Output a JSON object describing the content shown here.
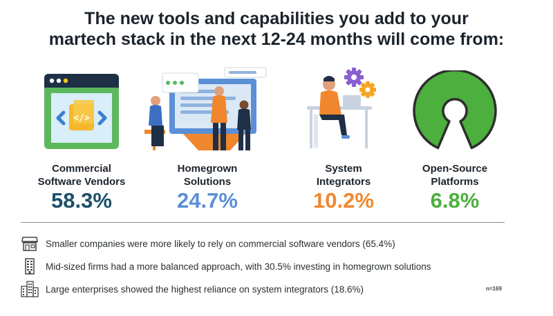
{
  "title": {
    "line1": "The new tools and capabilities you add to your",
    "line2": "martech stack in the next 12-24 months will come from:"
  },
  "chart_data": {
    "type": "bar",
    "categories": [
      {
        "line1": "Commercial",
        "line2": "Software Vendors"
      },
      {
        "line1": "Homegrown",
        "line2": "Solutions"
      },
      {
        "line1": "System",
        "line2": "Integrators"
      },
      {
        "line1": "Open-Source",
        "line2": "Platforms"
      }
    ],
    "values": [
      58.3,
      24.7,
      10.2,
      6.8
    ],
    "value_labels": [
      "58.3%",
      "24.7%",
      "10.2%",
      "6.8%"
    ],
    "colors": [
      "#1d4f6b",
      "#5b8fd6",
      "#f0872e",
      "#4caf3e"
    ],
    "sample_size": "n=169"
  },
  "icons": [
    "code-window-icon",
    "developers-team-icon",
    "integrator-gears-icon",
    "open-source-logo-icon"
  ],
  "notes": [
    {
      "icon": "shop-icon",
      "text": "Smaller companies were more likely to rely on commercial software vendors (65.4%)"
    },
    {
      "icon": "office-building-icon",
      "text": "Mid-sized firms had a more balanced approach, with 30.5% investing in homegrown solutions"
    },
    {
      "icon": "city-buildings-icon",
      "text": "Large enterprises showed the highest reliance on system integrators (18.6%)"
    }
  ]
}
